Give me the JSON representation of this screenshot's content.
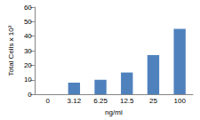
{
  "chart_data": {
    "type": "bar",
    "categories": [
      "0",
      "3.12",
      "6.25",
      "12.5",
      "25",
      "100"
    ],
    "values": [
      0,
      8,
      10,
      15,
      27,
      45
    ],
    "color": "#4f81bd",
    "xlabel": "ng/ml",
    "ylabel": "Total Cells x 10³",
    "ylim": [
      0,
      60
    ],
    "yticks": [
      0,
      10,
      20,
      30,
      40,
      50,
      60
    ],
    "grid": false
  }
}
